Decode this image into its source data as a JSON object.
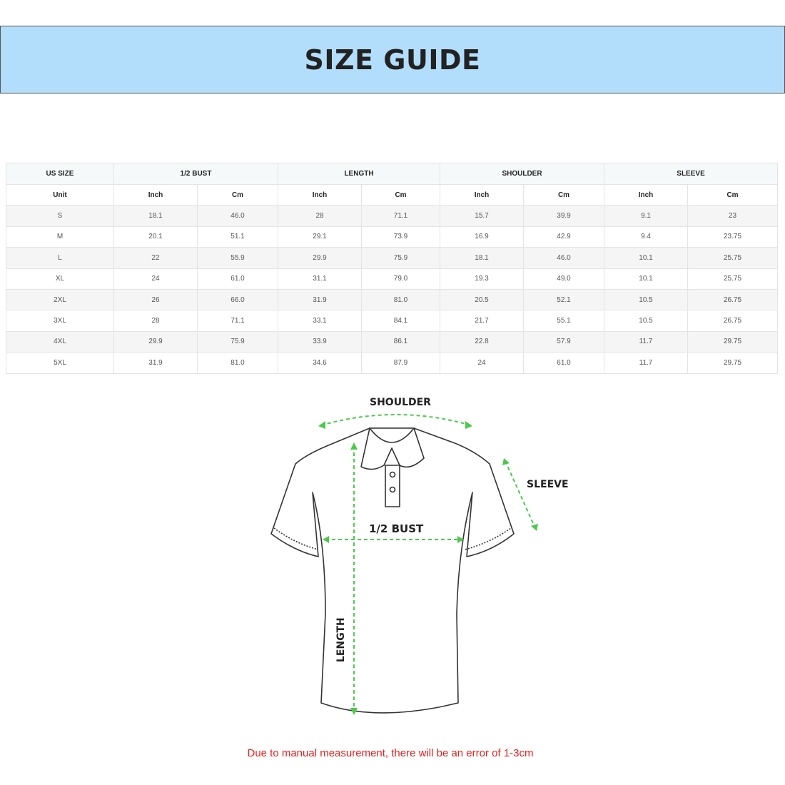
{
  "title": "SIZE GUIDE",
  "table": {
    "group_headers": [
      "US SIZE",
      "1/2 BUST",
      "LENGTH",
      "SHOULDER",
      "SLEEVE"
    ],
    "unit_label": "Unit",
    "units": [
      "Inch",
      "Cm",
      "Inch",
      "Cm",
      "Inch",
      "Cm",
      "Inch",
      "Cm"
    ],
    "rows": [
      [
        "S",
        "18.1",
        "46.0",
        "28",
        "71.1",
        "15.7",
        "39.9",
        "9.1",
        "23"
      ],
      [
        "M",
        "20.1",
        "51.1",
        "29.1",
        "73.9",
        "16.9",
        "42.9",
        "9.4",
        "23.75"
      ],
      [
        "L",
        "22",
        "55.9",
        "29.9",
        "75.9",
        "18.1",
        "46.0",
        "10.1",
        "25.75"
      ],
      [
        "XL",
        "24",
        "61.0",
        "31.1",
        "79.0",
        "19.3",
        "49.0",
        "10.1",
        "25.75"
      ],
      [
        "2XL",
        "26",
        "66.0",
        "31.9",
        "81.0",
        "20.5",
        "52.1",
        "10.5",
        "26.75"
      ],
      [
        "3XL",
        "28",
        "71.1",
        "33.1",
        "84.1",
        "21.7",
        "55.1",
        "10.5",
        "26.75"
      ],
      [
        "4XL",
        "29.9",
        "75.9",
        "33.9",
        "86.1",
        "22.8",
        "57.9",
        "11.7",
        "29.75"
      ],
      [
        "5XL",
        "31.9",
        "81.0",
        "34.6",
        "87.9",
        "24",
        "61.0",
        "11.7",
        "29.75"
      ]
    ]
  },
  "diagram": {
    "shoulder": "SHOULDER",
    "sleeve": "SLEEVE",
    "bust": "1/2 BUST",
    "length": "LENGTH",
    "arrow_color": "#4cc94c"
  },
  "note": "Due to manual measurement, there will be an error of 1-3cm",
  "colors": {
    "banner": "#b3defb",
    "note": "#e8201f"
  }
}
